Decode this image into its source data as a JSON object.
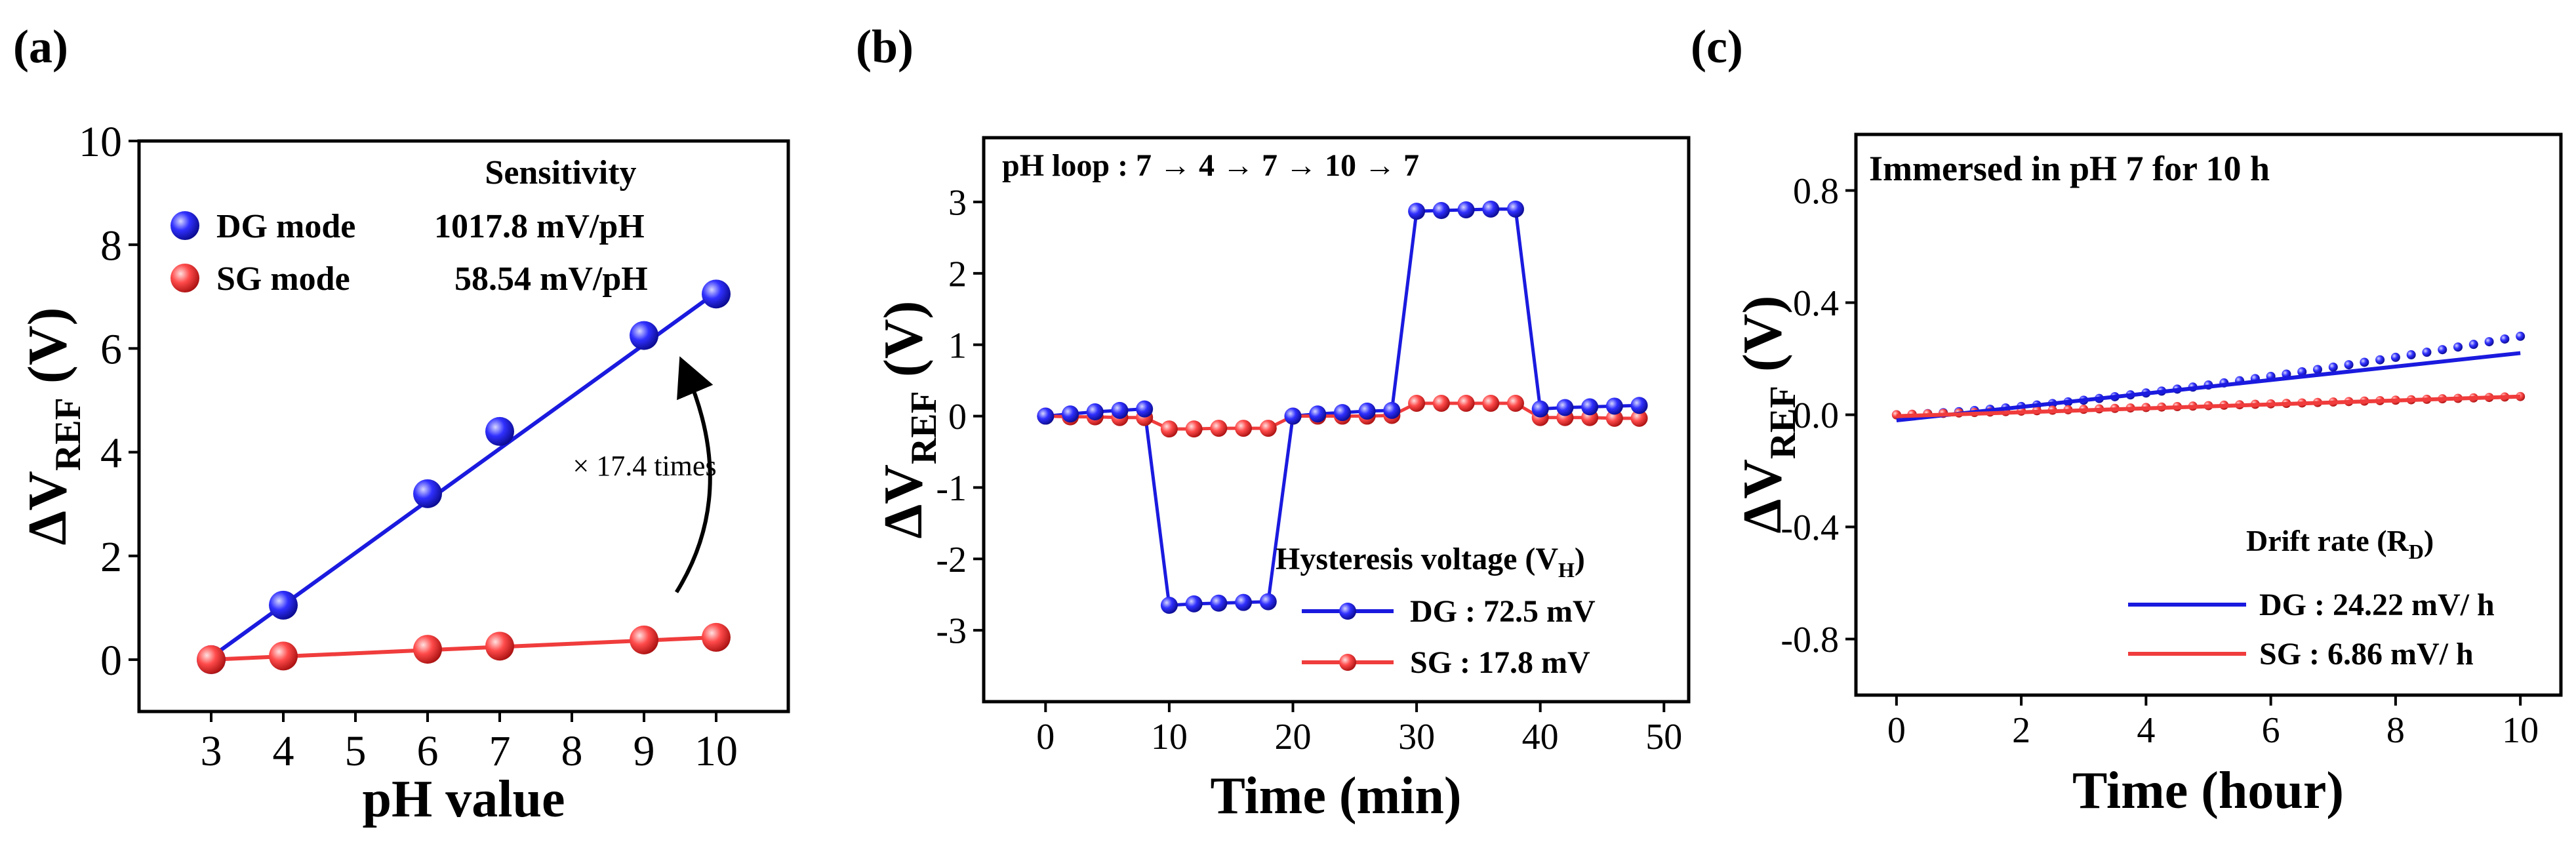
{
  "chart_data": [
    {
      "panel_label": "(a)",
      "type": "scatter",
      "xlabel": "pH value",
      "ylabel": "ΔV",
      "ylabel_sub": "REF",
      "ylabel_unit": " (V)",
      "xlim": [
        2,
        11
      ],
      "ylim": [
        -1,
        10
      ],
      "xticks": [
        3,
        4,
        5,
        6,
        7,
        8,
        9,
        10
      ],
      "yticks": [
        0,
        2,
        4,
        6,
        8,
        10
      ],
      "legend_title": "Sensitivity",
      "series": [
        {
          "name": "DG mode",
          "value_label": "1017.8 mV/pH",
          "color": "#1a1adf",
          "x": [
            3,
            4,
            6,
            7,
            9,
            10
          ],
          "y": [
            0.0,
            1.05,
            3.2,
            4.4,
            6.25,
            7.05
          ],
          "fit": [
            [
              3,
              0.05
            ],
            [
              10,
              7.08
            ]
          ]
        },
        {
          "name": "SG mode",
          "value_label": "58.54 mV/pH",
          "color": "#f03c3c",
          "x": [
            3,
            4,
            6,
            7,
            9,
            10
          ],
          "y": [
            0.0,
            0.07,
            0.2,
            0.26,
            0.38,
            0.43
          ],
          "fit": [
            [
              3,
              0.0
            ],
            [
              10,
              0.43
            ]
          ]
        }
      ],
      "annotation": "× 17.4 times"
    },
    {
      "panel_label": "(b)",
      "type": "line",
      "xlabel": "Time (min)",
      "ylabel": "ΔV",
      "ylabel_sub": "REF",
      "ylabel_unit": " (V)",
      "xlim": [
        -5,
        52
      ],
      "ylim": [
        -4,
        3.9
      ],
      "xticks": [
        0,
        10,
        20,
        30,
        40,
        50
      ],
      "yticks": [
        -3,
        -2,
        -1,
        0,
        1,
        2,
        3
      ],
      "annotation": "pH loop : 7 → 4 → 7 → 10 → 7",
      "legend_title": "Hysteresis voltage (V",
      "legend_title_sub": "H",
      "legend_title_end": ")",
      "series": [
        {
          "name": "DG :  72.5 mV",
          "color": "#1a1adf",
          "x": [
            0,
            2,
            4,
            6,
            8,
            10,
            12,
            14,
            16,
            18,
            20,
            22,
            24,
            26,
            28,
            30,
            32,
            34,
            36,
            38,
            40,
            42,
            44,
            46,
            48
          ],
          "y": [
            0,
            0.03,
            0.06,
            0.08,
            0.1,
            -2.65,
            -2.63,
            -2.62,
            -2.61,
            -2.6,
            0,
            0.03,
            0.05,
            0.07,
            0.08,
            2.87,
            2.88,
            2.89,
            2.9,
            2.9,
            0.1,
            0.12,
            0.13,
            0.14,
            0.15
          ]
        },
        {
          "name": "SG :  17.8  mV",
          "color": "#f03c3c",
          "x": [
            0,
            2,
            4,
            6,
            8,
            10,
            12,
            14,
            16,
            18,
            20,
            22,
            24,
            26,
            28,
            30,
            32,
            34,
            36,
            38,
            40,
            42,
            44,
            46,
            48
          ],
          "y": [
            0,
            -0.01,
            -0.01,
            -0.02,
            -0.02,
            -0.18,
            -0.18,
            -0.17,
            -0.17,
            -0.17,
            0,
            0,
            0,
            0,
            0.01,
            0.18,
            0.18,
            0.18,
            0.18,
            0.18,
            -0.02,
            -0.02,
            -0.02,
            -0.03,
            -0.03
          ]
        }
      ]
    },
    {
      "panel_label": "(c)",
      "type": "scatter",
      "xlabel": "Time (hour)",
      "ylabel": "ΔV",
      "ylabel_sub": "REF",
      "ylabel_unit": " (V)",
      "xlim": [
        -0.65,
        10.65
      ],
      "ylim": [
        -1.0,
        1.0
      ],
      "xticks": [
        0,
        2,
        4,
        6,
        8,
        10
      ],
      "yticks": [
        -0.8,
        -0.4,
        0.0,
        0.4,
        0.8
      ],
      "ytick_labels": [
        "-0.8",
        "-0.4",
        "0.0",
        "0.4",
        "0.8"
      ],
      "annotation": "Immersed in pH 7 for 10 h",
      "legend_title": "Drift rate (R",
      "legend_title_sub": "D",
      "legend_title_end": ")",
      "series": [
        {
          "name": "DG : 24.22 mV/ h",
          "color": "#1a1adf",
          "data_start": 0.0,
          "data_end": 0.28,
          "curve_exp": 1.4,
          "fit": [
            [
              0,
              -0.02
            ],
            [
              10,
              0.22
            ]
          ]
        },
        {
          "name": "SG :  6.86 mV/ h",
          "color": "#f03c3c",
          "data_start": 0.0,
          "data_end": 0.065,
          "curve_exp": 1.0,
          "fit": [
            [
              0,
              -0.005
            ],
            [
              10,
              0.065
            ]
          ]
        }
      ]
    }
  ]
}
